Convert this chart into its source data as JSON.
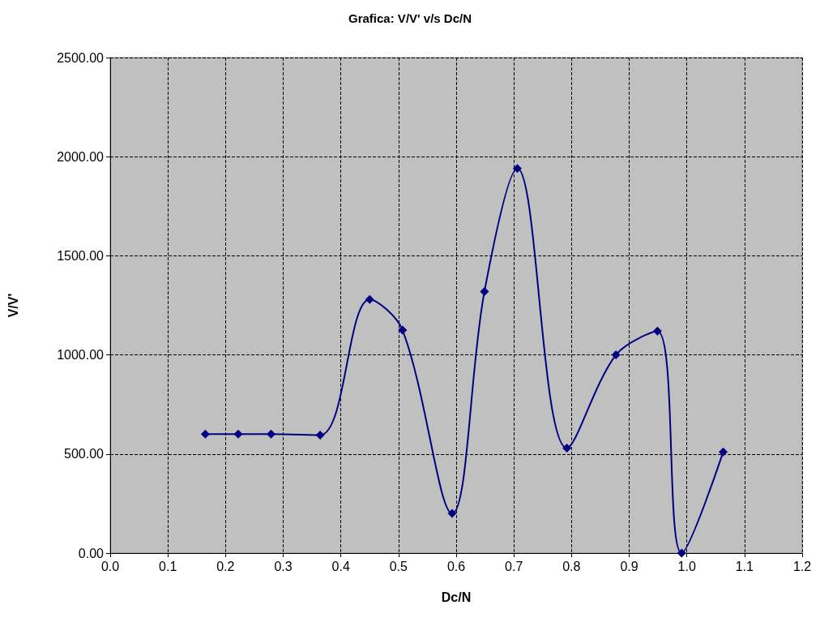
{
  "chart_data": {
    "type": "line",
    "title": "Grafica: V/V' v/s Dc/N",
    "xlabel": "Dc/N",
    "ylabel": "V/V'",
    "x": [
      0.165,
      0.222,
      0.279,
      0.364,
      0.45,
      0.507,
      0.593,
      0.649,
      0.706,
      0.792,
      0.877,
      0.949,
      0.991,
      1.063
    ],
    "series": [
      {
        "color": "#000080",
        "values": [
          600,
          600,
          600,
          595,
          1280,
          1125,
          200,
          1320,
          1940,
          530,
          1000,
          1120,
          0,
          510
        ]
      }
    ],
    "xlim": [
      0,
      1.2
    ],
    "xticks": [
      {
        "value": 0,
        "label": "0.0"
      },
      {
        "value": 0.1,
        "label": "0.1"
      },
      {
        "value": 0.2,
        "label": "0.2"
      },
      {
        "value": 0.3,
        "label": "0.3"
      },
      {
        "value": 0.4,
        "label": "0.4"
      },
      {
        "value": 0.5,
        "label": "0.5"
      },
      {
        "value": 0.6,
        "label": "0.6"
      },
      {
        "value": 0.7,
        "label": "0.7"
      },
      {
        "value": 0.8,
        "label": "0.8"
      },
      {
        "value": 0.9,
        "label": "0.9"
      },
      {
        "value": 1,
        "label": "1.0"
      },
      {
        "value": 1.1,
        "label": "1.1"
      },
      {
        "value": 1.2,
        "label": "1.2"
      }
    ],
    "ylim": [
      0,
      2500
    ],
    "yticks": [
      {
        "value": 0,
        "label": "0.00"
      },
      {
        "value": 500,
        "label": "500.00"
      },
      {
        "value": 1000,
        "label": "1000.00"
      },
      {
        "value": 1500,
        "label": "1500.00"
      },
      {
        "value": 2000,
        "label": "2000.00"
      },
      {
        "value": 2500,
        "label": "2500.00"
      }
    ],
    "grid": true,
    "marker": "diamond",
    "line_style": "solid"
  }
}
